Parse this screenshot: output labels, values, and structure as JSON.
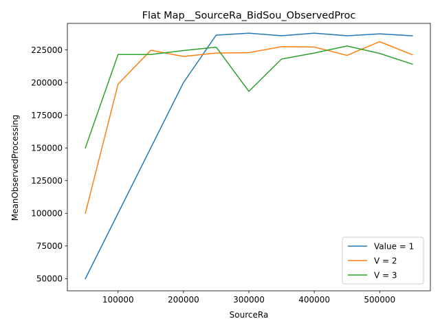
{
  "chart_data": {
    "type": "line",
    "title": "Flat Map__SourceRa_BidSou_ObservedProc",
    "xlabel": "SourceRa",
    "ylabel": "MeanObservedProcessing",
    "x": [
      50000,
      100000,
      150000,
      200000,
      250000,
      300000,
      350000,
      400000,
      450000,
      500000,
      550000
    ],
    "xlim": [
      22500,
      577500
    ],
    "ylim": [
      40700,
      245300
    ],
    "xticks": [
      100000,
      200000,
      300000,
      400000,
      500000
    ],
    "yticks": [
      50000,
      75000,
      100000,
      125000,
      150000,
      175000,
      200000,
      225000
    ],
    "series": [
      {
        "name": "Value = 1",
        "color": "#1f77b4",
        "values": [
          50000,
          100000,
          150000,
          200000,
          236300,
          237800,
          235800,
          237800,
          235800,
          237300,
          235800
        ]
      },
      {
        "name": "V = 2",
        "color": "#ff7f0e",
        "values": [
          100000,
          198800,
          224700,
          220000,
          222600,
          222900,
          227500,
          227200,
          220800,
          231300,
          221300
        ]
      },
      {
        "name": "V = 3",
        "color": "#2ca02c",
        "values": [
          150000,
          221500,
          221500,
          224500,
          227100,
          193300,
          218000,
          222600,
          228000,
          222300,
          214100
        ]
      }
    ],
    "grid": false,
    "legend_position": "lower-right"
  }
}
